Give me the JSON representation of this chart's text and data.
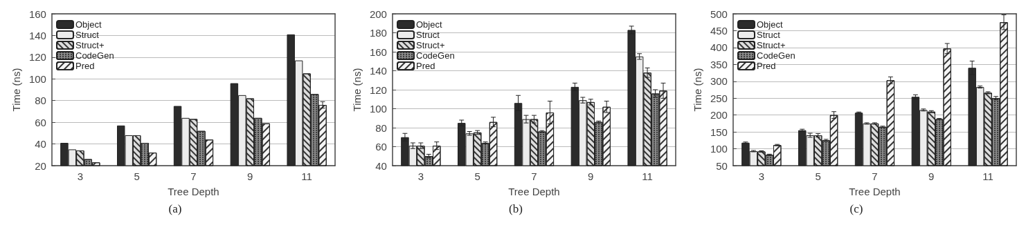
{
  "chart_data": [
    {
      "type": "bar",
      "title": "(a)",
      "xlabel": "Tree Depth",
      "ylabel": "Time (ns)",
      "categories": [
        "3",
        "5",
        "7",
        "9",
        "11"
      ],
      "ylim": [
        20,
        160
      ],
      "yticks": [
        20,
        40,
        60,
        80,
        100,
        120,
        140,
        160
      ],
      "grid": "y",
      "legend": "top left",
      "series": [
        {
          "name": "Object",
          "color": "#2b2b2b",
          "values": [
            41,
            57,
            75,
            96,
            141
          ]
        },
        {
          "name": "Struct",
          "color": "#ececec",
          "values": [
            35,
            48,
            64,
            85,
            117
          ]
        },
        {
          "name": "Struct+",
          "color": "#dddddd",
          "values": [
            34,
            48,
            63,
            82,
            105
          ]
        },
        {
          "name": "CodeGen",
          "color": "#888888",
          "values": [
            26,
            41,
            52,
            64,
            86
          ]
        },
        {
          "name": "Pred",
          "color": "#f4f4f4",
          "values": [
            23,
            32,
            44,
            59,
            76
          ],
          "errors": [
            null,
            null,
            null,
            null,
            3
          ]
        }
      ]
    },
    {
      "type": "bar",
      "title": "(b)",
      "xlabel": "Tree Depth",
      "ylabel": "Time (ns)",
      "categories": [
        "3",
        "5",
        "7",
        "9",
        "11"
      ],
      "ylim": [
        40,
        200
      ],
      "yticks": [
        40,
        60,
        80,
        100,
        120,
        140,
        160,
        180,
        200
      ],
      "grid": "y",
      "legend": "top left",
      "series": [
        {
          "name": "Object",
          "color": "#2b2b2b",
          "values": [
            70,
            85,
            106,
            123,
            183
          ],
          "errors": [
            4,
            3,
            8,
            4,
            4
          ]
        },
        {
          "name": "Struct",
          "color": "#ececec",
          "values": [
            61,
            74,
            89,
            109,
            155
          ],
          "errors": [
            3,
            2,
            4,
            3,
            3
          ]
        },
        {
          "name": "Struct+",
          "color": "#dddddd",
          "values": [
            61,
            75,
            89,
            107,
            138
          ],
          "errors": [
            3,
            2,
            4,
            3,
            5
          ]
        },
        {
          "name": "CodeGen",
          "color": "#888888",
          "values": [
            50,
            64,
            76,
            86,
            116
          ],
          "errors": [
            2,
            1,
            1,
            1,
            4
          ]
        },
        {
          "name": "Pred",
          "color": "#f4f4f4",
          "values": [
            61,
            86,
            96,
            102,
            119
          ],
          "errors": [
            4,
            5,
            12,
            6,
            8
          ]
        }
      ]
    },
    {
      "type": "bar",
      "title": "(c)",
      "xlabel": "Tree Depth",
      "ylabel": "Time (ns)",
      "categories": [
        "3",
        "5",
        "7",
        "9",
        "11"
      ],
      "ylim": [
        50,
        500
      ],
      "yticks": [
        50,
        100,
        150,
        200,
        250,
        300,
        350,
        400,
        450,
        500
      ],
      "grid": "y",
      "legend": "top left",
      "series": [
        {
          "name": "Object",
          "color": "#2b2b2b",
          "values": [
            118,
            155,
            207,
            254,
            340
          ],
          "errors": [
            2,
            3,
            2,
            6,
            20
          ]
        },
        {
          "name": "Struct",
          "color": "#ececec",
          "values": [
            93,
            140,
            175,
            215,
            283
          ],
          "errors": [
            2,
            6,
            2,
            3,
            3
          ]
        },
        {
          "name": "Struct+",
          "color": "#dddddd",
          "values": [
            92,
            140,
            175,
            210,
            266
          ],
          "errors": [
            2,
            5,
            2,
            3,
            3
          ]
        },
        {
          "name": "CodeGen",
          "color": "#888888",
          "values": [
            82,
            125,
            165,
            188,
            250
          ],
          "errors": [
            2,
            3,
            2,
            2,
            5
          ]
        },
        {
          "name": "Pred",
          "color": "#f4f4f4",
          "values": [
            111,
            200,
            303,
            397,
            475
          ],
          "errors": [
            2,
            10,
            10,
            15,
            22
          ]
        }
      ]
    }
  ]
}
